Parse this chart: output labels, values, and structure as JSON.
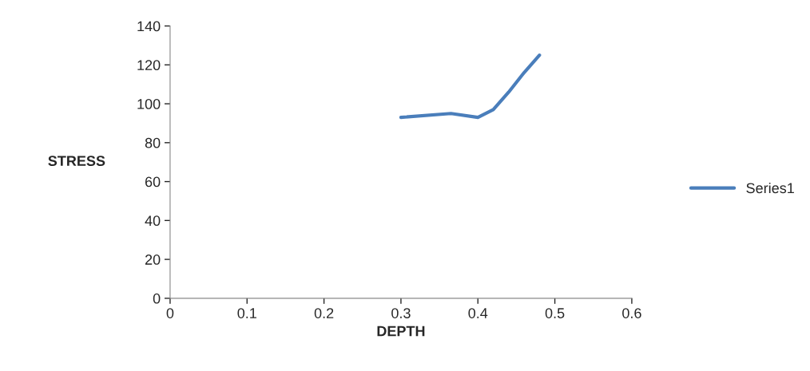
{
  "chart_data": {
    "type": "line",
    "xlabel": "DEPTH",
    "ylabel": "STRESS",
    "x": [
      0.3,
      0.365,
      0.4,
      0.42,
      0.44,
      0.46,
      0.48
    ],
    "series": [
      {
        "name": "Series1",
        "color": "#4a7ebb",
        "values": [
          93,
          95,
          93,
          97,
          106,
          116,
          125
        ]
      }
    ],
    "xlim": [
      0,
      0.6
    ],
    "xticks": [
      {
        "value": 0,
        "label": "0"
      },
      0.1,
      0.2,
      0.3,
      0.4,
      0.5,
      0.6
    ],
    "ylim": [
      0,
      140
    ],
    "yticks": [
      0,
      20,
      40,
      60,
      80,
      100,
      120,
      140
    ],
    "grid": false,
    "legend": "right",
    "marker": "none",
    "line_style": "solid"
  }
}
